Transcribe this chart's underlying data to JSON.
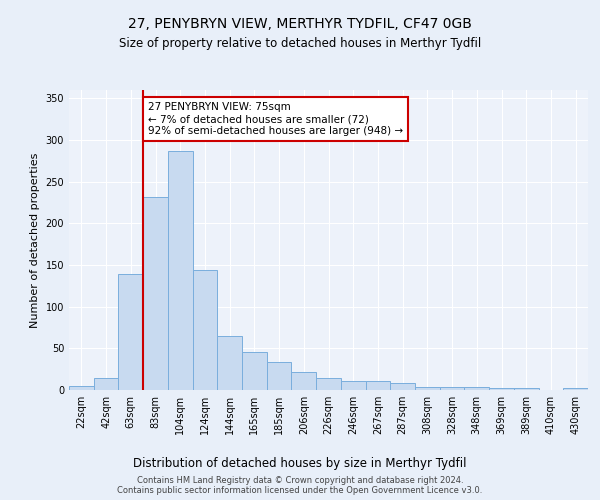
{
  "title": "27, PENYBRYN VIEW, MERTHYR TYDFIL, CF47 0GB",
  "subtitle": "Size of property relative to detached houses in Merthyr Tydfil",
  "xlabel": "Distribution of detached houses by size in Merthyr Tydfil",
  "ylabel": "Number of detached properties",
  "bin_labels": [
    "22sqm",
    "42sqm",
    "63sqm",
    "83sqm",
    "104sqm",
    "124sqm",
    "144sqm",
    "165sqm",
    "185sqm",
    "206sqm",
    "226sqm",
    "246sqm",
    "267sqm",
    "287sqm",
    "308sqm",
    "328sqm",
    "348sqm",
    "369sqm",
    "389sqm",
    "410sqm",
    "430sqm"
  ],
  "bar_values": [
    5,
    14,
    139,
    232,
    287,
    144,
    65,
    46,
    34,
    22,
    14,
    11,
    11,
    8,
    4,
    4,
    4,
    2,
    2,
    0,
    2
  ],
  "bar_color": "#c8daf0",
  "bar_edge_color": "#7aaedd",
  "vline_color": "#cc0000",
  "vline_bin_index": 2,
  "annotation_text": "27 PENYBRYN VIEW: 75sqm\n← 7% of detached houses are smaller (72)\n92% of semi-detached houses are larger (948) →",
  "annotation_box_facecolor": "#ffffff",
  "annotation_box_edgecolor": "#cc0000",
  "footer_text": "Contains HM Land Registry data © Crown copyright and database right 2024.\nContains public sector information licensed under the Open Government Licence v3.0.",
  "ylim": [
    0,
    360
  ],
  "yticks": [
    0,
    50,
    100,
    150,
    200,
    250,
    300,
    350
  ],
  "bg_color": "#e8eff9",
  "plot_bg_color": "#edf2fa",
  "title_fontsize": 10,
  "subtitle_fontsize": 8.5,
  "xlabel_fontsize": 8.5,
  "ylabel_fontsize": 8,
  "tick_fontsize": 7,
  "annotation_fontsize": 7.5,
  "footer_fontsize": 6,
  "footer_color": "#444444"
}
